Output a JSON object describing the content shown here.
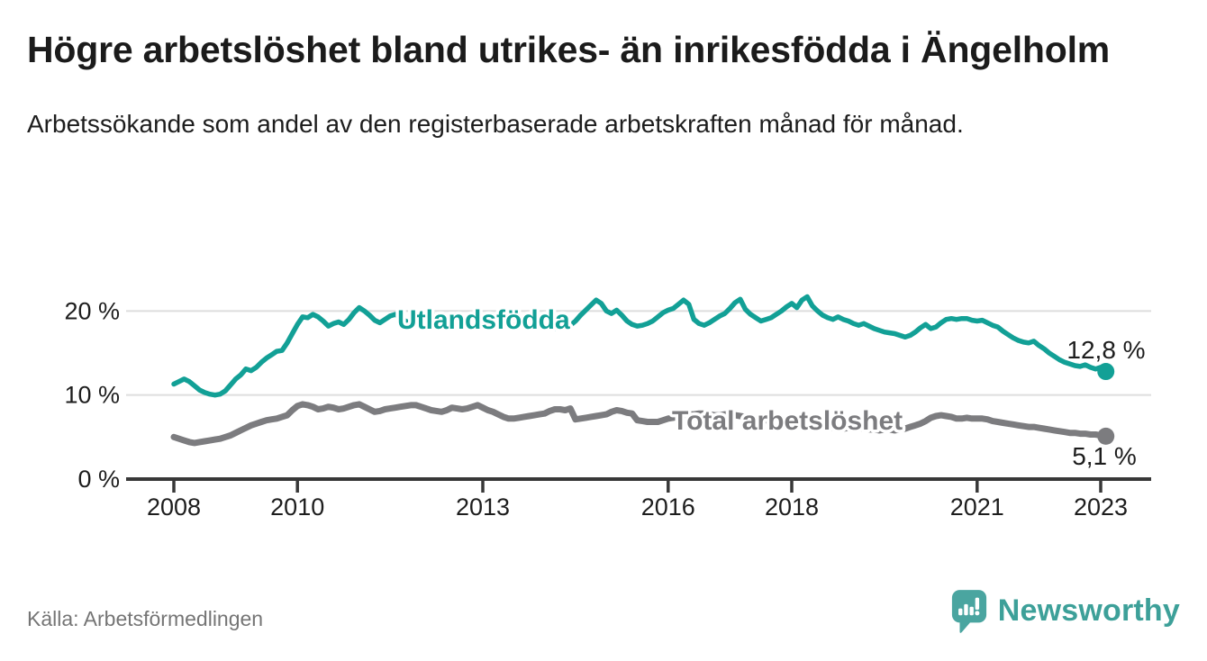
{
  "header": {
    "title": "Högre arbetslöshet bland utrikes- än inrikesfödda i Ängelholm",
    "subtitle": "Arbetssökande som andel av den registerbaserade arbetskraften månad för månad."
  },
  "footer": {
    "source_label": "Källa: Arbetsförmedlingen",
    "logo_text": "Newsworthy",
    "logo_icon": "speech-bubble-bar-chart-icon",
    "logo_color": "#3da099",
    "logo_icon_color": "#4aa5a0"
  },
  "colors": {
    "foreign_born_line": "#12a096",
    "total_line": "#7c7c7f",
    "grid": "#dedede",
    "axis": "#383838",
    "value_label": "#1d1d1d"
  },
  "chart_data": {
    "type": "line",
    "title": "Högre arbetslöshet bland utrikes- än inrikesfödda i Ängelholm",
    "subtitle": "Arbetssökande som andel av den registerbaserade arbetskraften månad för månad.",
    "frequency": "monthly",
    "x_start": "2008-01",
    "x_end": "2023-02",
    "y_unit": "%",
    "ylim": [
      0,
      22
    ],
    "grid": "horizontal",
    "y_ticks": [
      {
        "value": 0,
        "label": "0 %"
      },
      {
        "value": 10,
        "label": "10 %"
      },
      {
        "value": 20,
        "label": "20 %"
      }
    ],
    "x_ticks": [
      {
        "year": 2008,
        "label": "2008"
      },
      {
        "year": 2010,
        "label": "2010"
      },
      {
        "year": 2013,
        "label": "2013"
      },
      {
        "year": 2016,
        "label": "2016"
      },
      {
        "year": 2018,
        "label": "2018"
      },
      {
        "year": 2021,
        "label": "2021"
      },
      {
        "year": 2023,
        "label": "2023"
      }
    ],
    "series": [
      {
        "name": "Utlandsfödda",
        "color": "#12a096",
        "end_value": 12.8,
        "end_label": "12,8 %",
        "values": [
          11.3,
          11.6,
          11.9,
          11.6,
          11.1,
          10.6,
          10.3,
          10.1,
          10.0,
          10.1,
          10.5,
          11.2,
          11.9,
          12.4,
          13.1,
          12.9,
          13.3,
          13.9,
          14.4,
          14.8,
          15.2,
          15.3,
          16.2,
          17.3,
          18.4,
          19.3,
          19.2,
          19.6,
          19.3,
          18.8,
          18.2,
          18.5,
          18.7,
          18.4,
          19.0,
          19.8,
          20.4,
          20.0,
          19.5,
          18.9,
          18.6,
          19.0,
          19.4,
          19.6,
          19.2,
          18.8,
          18.5,
          18.7,
          19.0,
          19.3,
          19.6,
          19.4,
          19.0,
          18.7,
          18.5,
          18.8,
          19.1,
          18.9,
          18.6,
          18.9,
          19.2,
          19.0,
          18.7,
          18.5,
          18.3,
          18.1,
          18.3,
          18.6,
          18.4,
          18.2,
          18.5,
          18.7,
          18.4,
          18.1,
          17.9,
          18.2,
          18.5,
          18.3,
          18.8,
          19.5,
          20.1,
          20.7,
          21.3,
          20.9,
          20.0,
          19.7,
          20.1,
          19.5,
          18.8,
          18.4,
          18.2,
          18.3,
          18.5,
          18.8,
          19.3,
          19.8,
          20.1,
          20.3,
          20.8,
          21.3,
          20.8,
          19.0,
          18.5,
          18.3,
          18.6,
          19.0,
          19.4,
          19.7,
          20.3,
          21.0,
          21.4,
          20.2,
          19.6,
          19.2,
          18.8,
          19.0,
          19.2,
          19.6,
          20.0,
          20.5,
          20.9,
          20.4,
          21.3,
          21.7,
          20.6,
          20.0,
          19.5,
          19.2,
          19.0,
          19.3,
          19.0,
          18.8,
          18.5,
          18.3,
          18.5,
          18.2,
          17.9,
          17.7,
          17.5,
          17.4,
          17.3,
          17.1,
          16.9,
          17.1,
          17.5,
          18.0,
          18.4,
          17.9,
          18.1,
          18.6,
          19.0,
          19.1,
          19.0,
          19.1,
          19.1,
          18.9,
          18.8,
          18.9,
          18.6,
          18.3,
          18.1,
          17.6,
          17.2,
          16.8,
          16.5,
          16.3,
          16.2,
          16.4,
          15.9,
          15.5,
          15.0,
          14.6,
          14.2,
          13.9,
          13.7,
          13.5,
          13.4,
          13.6,
          13.3,
          13.1,
          13.3,
          12.8
        ]
      },
      {
        "name": "Total arbetslöshet",
        "color": "#7c7c7f",
        "end_value": 5.1,
        "end_label": "5,1 %",
        "values": [
          5.0,
          4.8,
          4.6,
          4.4,
          4.3,
          4.4,
          4.5,
          4.6,
          4.7,
          4.8,
          5.0,
          5.2,
          5.5,
          5.8,
          6.1,
          6.4,
          6.6,
          6.8,
          7.0,
          7.1,
          7.2,
          7.4,
          7.6,
          8.2,
          8.7,
          8.9,
          8.8,
          8.6,
          8.3,
          8.4,
          8.6,
          8.5,
          8.3,
          8.4,
          8.6,
          8.8,
          8.9,
          8.6,
          8.3,
          8.0,
          8.1,
          8.3,
          8.4,
          8.5,
          8.6,
          8.7,
          8.8,
          8.8,
          8.6,
          8.4,
          8.2,
          8.1,
          8.0,
          8.2,
          8.5,
          8.4,
          8.3,
          8.4,
          8.6,
          8.8,
          8.5,
          8.2,
          8.0,
          7.7,
          7.4,
          7.2,
          7.2,
          7.3,
          7.4,
          7.5,
          7.6,
          7.7,
          7.8,
          8.1,
          8.3,
          8.3,
          8.2,
          8.4,
          7.1,
          7.2,
          7.3,
          7.4,
          7.5,
          7.6,
          7.7,
          8.0,
          8.2,
          8.1,
          7.9,
          7.8,
          7.0,
          6.9,
          6.8,
          6.8,
          6.8,
          7.0,
          7.2,
          7.3,
          7.4,
          7.6,
          7.7,
          7.7,
          7.8,
          7.8,
          7.7,
          7.6,
          7.6,
          7.7,
          7.7,
          7.6,
          7.5,
          7.4,
          7.3,
          7.2,
          7.1,
          7.0,
          7.0,
          6.9,
          6.9,
          7.0,
          7.0,
          6.9,
          6.8,
          6.7,
          6.5,
          6.4,
          6.3,
          6.2,
          6.1,
          6.0,
          6.0,
          6.1,
          6.2,
          6.1,
          6.0,
          5.9,
          5.9,
          5.8,
          5.9,
          5.9,
          5.8,
          5.9,
          6.0,
          6.2,
          6.4,
          6.6,
          6.9,
          7.3,
          7.5,
          7.6,
          7.5,
          7.4,
          7.2,
          7.2,
          7.3,
          7.2,
          7.2,
          7.2,
          7.1,
          6.9,
          6.8,
          6.7,
          6.6,
          6.5,
          6.4,
          6.3,
          6.2,
          6.2,
          6.1,
          6.0,
          5.9,
          5.8,
          5.7,
          5.6,
          5.5,
          5.5,
          5.4,
          5.4,
          5.3,
          5.3,
          5.2,
          5.1
        ]
      }
    ],
    "legend_position": "inline-labels"
  }
}
